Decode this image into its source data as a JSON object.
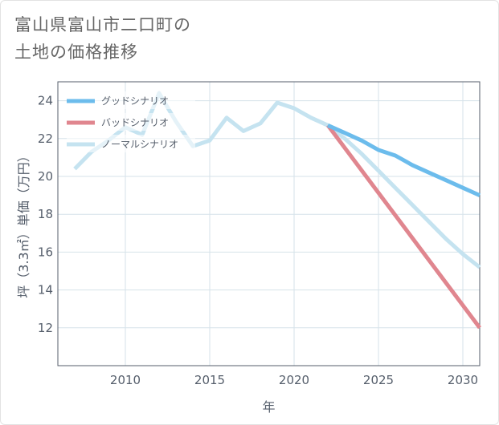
{
  "title_line1": "富山県富山市二口町の",
  "title_line2": "土地の価格推移",
  "chart_data": {
    "type": "line",
    "xlabel": "年",
    "ylabel": "坪（3.3㎡）単価（万円）",
    "xlim": [
      2006,
      2031
    ],
    "ylim": [
      10,
      25
    ],
    "xticks": [
      2010,
      2015,
      2020,
      2025,
      2030
    ],
    "yticks": [
      12,
      14,
      16,
      18,
      20,
      22,
      24
    ],
    "grid": true,
    "legend_position": "top-left",
    "series": [
      {
        "name": "グッドシナリオ",
        "color": "#6cbcec",
        "x": [
          2022,
          2023,
          2024,
          2025,
          2026,
          2027,
          2028,
          2029,
          2030,
          2031
        ],
        "y": [
          22.7,
          22.3,
          21.9,
          21.4,
          21.1,
          20.6,
          20.2,
          19.8,
          19.4,
          19.0
        ]
      },
      {
        "name": "バッドシナリオ",
        "color": "#e0868f",
        "x": [
          2022,
          2031
        ],
        "y": [
          22.7,
          12.0
        ]
      },
      {
        "name": "ノーマルシナリオ",
        "color": "#c5e3f0",
        "x": [
          2007,
          2008,
          2009,
          2010,
          2011,
          2012,
          2013,
          2014,
          2015,
          2016,
          2017,
          2018,
          2019,
          2020,
          2021,
          2022,
          2023,
          2024,
          2025,
          2026,
          2027,
          2028,
          2029,
          2030,
          2031
        ],
        "y": [
          20.4,
          21.3,
          21.9,
          22.6,
          22.2,
          24.4,
          22.9,
          21.6,
          21.9,
          23.1,
          22.4,
          22.8,
          23.9,
          23.6,
          23.1,
          22.7,
          22.0,
          21.2,
          20.3,
          19.4,
          18.5,
          17.6,
          16.7,
          15.9,
          15.2
        ]
      }
    ]
  }
}
